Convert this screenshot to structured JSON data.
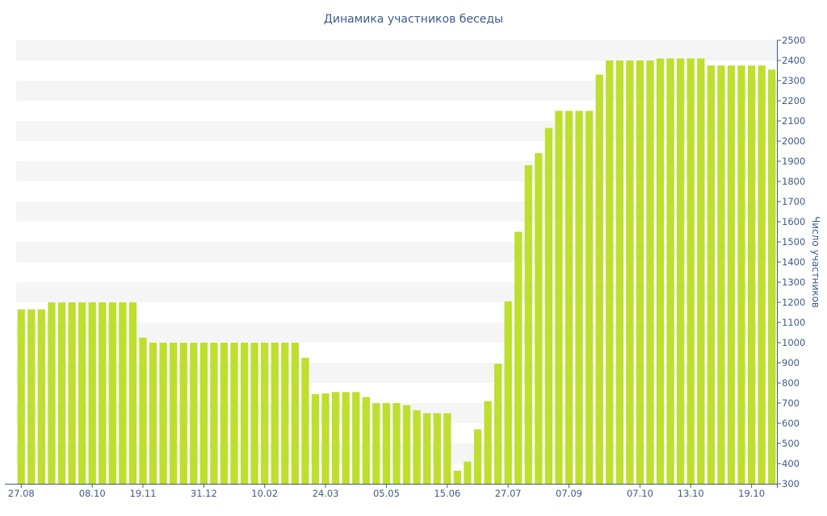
{
  "chart_data": {
    "type": "bar",
    "title": "Динамика участников беседы",
    "ylabel": "Число участников",
    "xlabel": "",
    "ylim": [
      300,
      2500
    ],
    "yticks": [
      300,
      400,
      500,
      600,
      700,
      800,
      900,
      1000,
      1100,
      1200,
      1300,
      1400,
      1500,
      1600,
      1700,
      1800,
      1900,
      2000,
      2100,
      2200,
      2300,
      2400,
      2500
    ],
    "x_tick_labels": [
      {
        "index": 0,
        "label": "27.08"
      },
      {
        "index": 7,
        "label": "08.10"
      },
      {
        "index": 12,
        "label": "19.11"
      },
      {
        "index": 18,
        "label": "31.12"
      },
      {
        "index": 24,
        "label": "10.02"
      },
      {
        "index": 30,
        "label": "24.03"
      },
      {
        "index": 36,
        "label": "05.05"
      },
      {
        "index": 42,
        "label": "15.06"
      },
      {
        "index": 48,
        "label": "27.07"
      },
      {
        "index": 54,
        "label": "07.09"
      },
      {
        "index": 61,
        "label": "07.10"
      },
      {
        "index": 66,
        "label": "13.10"
      },
      {
        "index": 72,
        "label": "19.10"
      }
    ],
    "grid": "alternating horizontal bands",
    "legend": "none",
    "colors": {
      "bar": "#bedf2e",
      "text": "#3f5a8a",
      "band": "#f5f5f5",
      "axis": "#3f5a8a"
    },
    "values": [
      1165,
      1165,
      1165,
      1200,
      1200,
      1200,
      1200,
      1200,
      1200,
      1200,
      1200,
      1200,
      1025,
      1000,
      1000,
      1000,
      1000,
      1000,
      1000,
      1000,
      1000,
      1000,
      1000,
      1000,
      1000,
      1000,
      1000,
      1000,
      925,
      745,
      748,
      755,
      755,
      755,
      730,
      700,
      700,
      700,
      690,
      665,
      650,
      650,
      650,
      365,
      410,
      570,
      710,
      895,
      1205,
      1550,
      1880,
      1940,
      2065,
      2150,
      2150,
      2150,
      2150,
      2330,
      2400,
      2400,
      2400,
      2400,
      2400,
      2410,
      2410,
      2410,
      2410,
      2410,
      2375,
      2375,
      2375,
      2375,
      2375,
      2375,
      2355
    ]
  }
}
